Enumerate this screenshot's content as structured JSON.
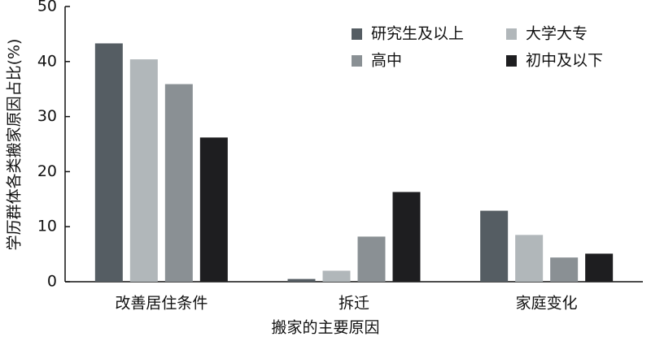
{
  "chart_data": {
    "type": "bar",
    "xlabel": "搬家的主要原因",
    "ylabel": "学历群体各类搬家原因占比(%)",
    "categories": [
      "改善居住条件",
      "拆迁",
      "家庭变化"
    ],
    "series": [
      {
        "name": "研究生及以上",
        "color": "#555d63",
        "values": [
          43.3,
          0.5,
          12.9
        ]
      },
      {
        "name": "大学大专",
        "color": "#b1b7ba",
        "values": [
          40.4,
          2.0,
          8.5
        ]
      },
      {
        "name": "高中",
        "color": "#8a9094",
        "values": [
          35.9,
          8.2,
          4.4
        ]
      },
      {
        "name": "初中及以下",
        "color": "#1e1e20",
        "values": [
          26.2,
          16.3,
          5.1
        ]
      }
    ],
    "ylim": [
      0,
      50
    ],
    "yticks": [
      0,
      10,
      20,
      30,
      40,
      50
    ],
    "legend": "upper right"
  }
}
